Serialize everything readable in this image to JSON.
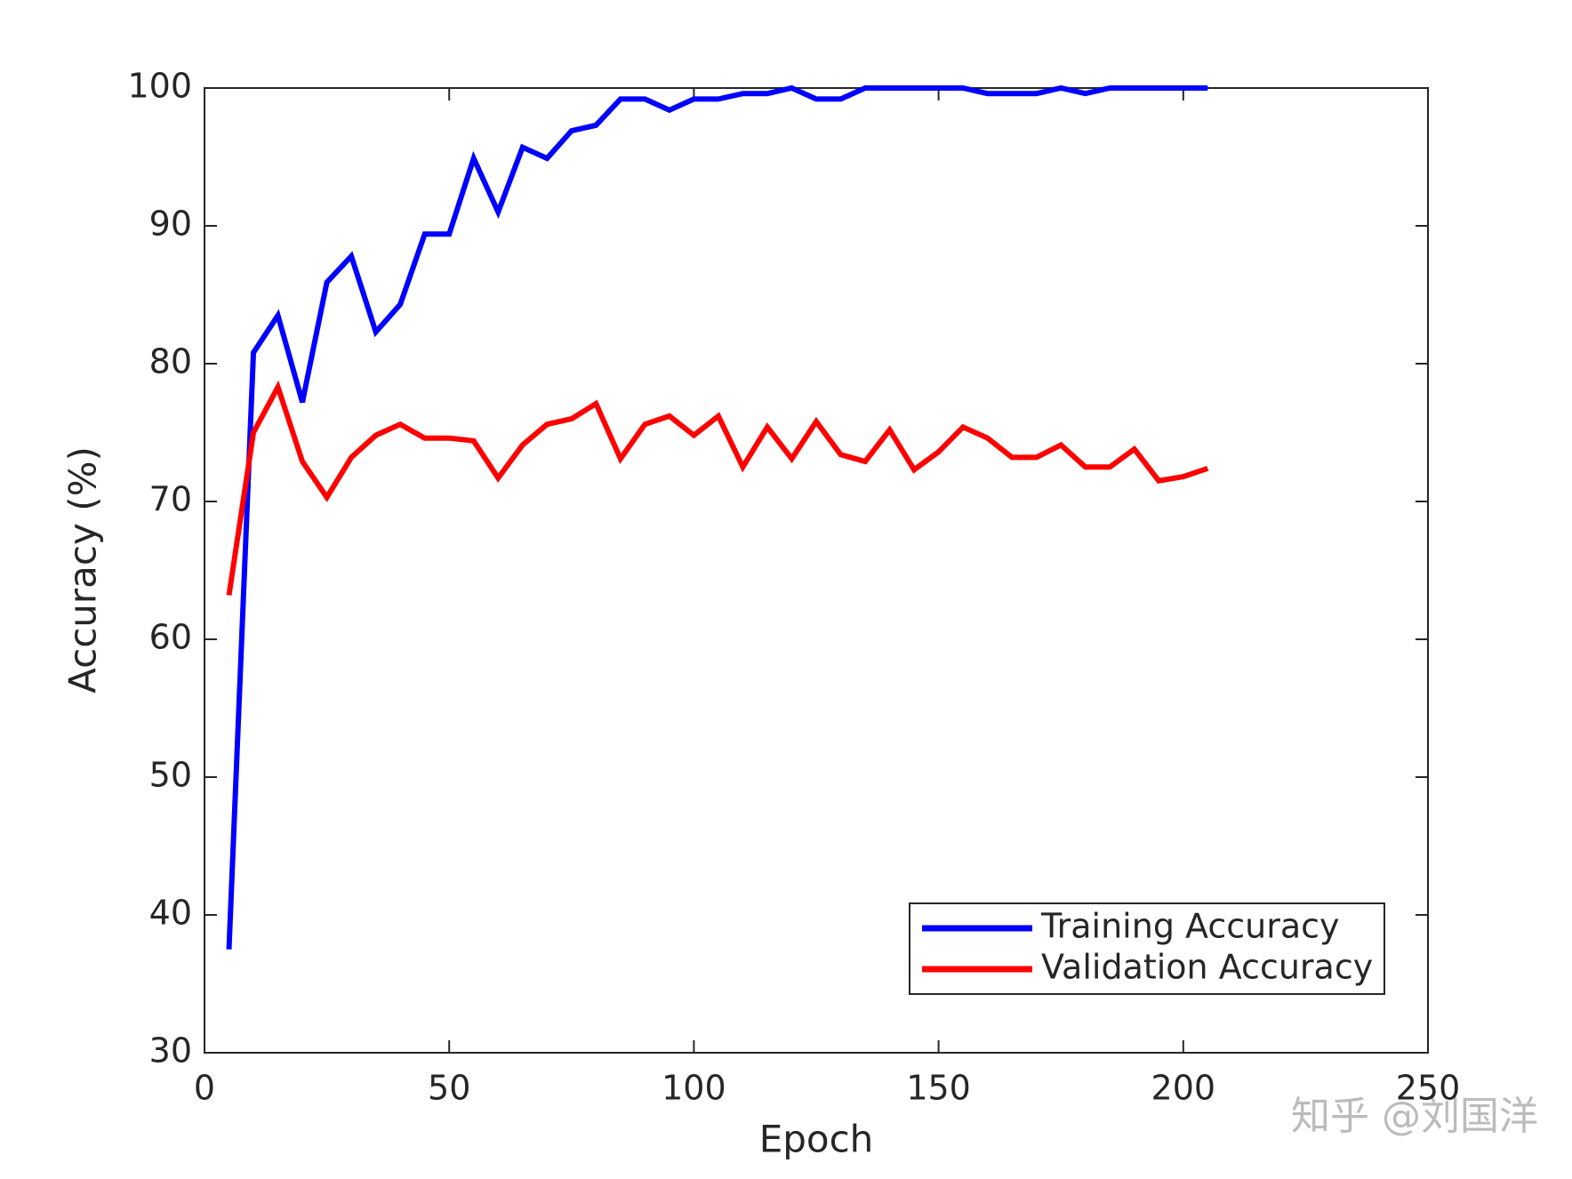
{
  "chart_data": {
    "type": "line",
    "xlabel": "Epoch",
    "ylabel": "Accuracy (%)",
    "x": [
      5,
      10,
      15,
      20,
      25,
      30,
      35,
      40,
      45,
      50,
      55,
      60,
      65,
      70,
      75,
      80,
      85,
      90,
      95,
      100,
      105,
      110,
      115,
      120,
      125,
      130,
      135,
      140,
      145,
      150,
      155,
      160,
      165,
      170,
      175,
      180,
      185,
      190,
      195,
      200,
      205
    ],
    "series": [
      {
        "name": "Training Accuracy",
        "color": "#0000ff",
        "values": [
          37.5,
          80.8,
          83.5,
          77.2,
          85.9,
          87.8,
          82.3,
          84.3,
          89.4,
          89.4,
          94.9,
          91.0,
          95.7,
          94.9,
          96.9,
          97.3,
          99.2,
          99.2,
          98.4,
          99.2,
          99.2,
          99.6,
          99.6,
          100,
          99.2,
          99.2,
          100,
          100,
          100,
          100,
          100,
          99.6,
          99.6,
          99.6,
          100,
          99.6,
          100,
          100,
          100,
          100,
          100
        ]
      },
      {
        "name": "Validation Accuracy",
        "color": "#ff0000",
        "values": [
          63.2,
          75.0,
          78.3,
          72.9,
          70.3,
          73.2,
          74.8,
          75.6,
          74.6,
          74.6,
          74.4,
          71.7,
          74.1,
          75.6,
          76.0,
          77.1,
          73.1,
          75.6,
          76.2,
          74.8,
          76.2,
          72.5,
          75.4,
          73.1,
          75.8,
          73.4,
          72.9,
          75.2,
          72.3,
          73.6,
          75.4,
          74.6,
          73.2,
          73.2,
          74.1,
          72.5,
          72.5,
          73.8,
          71.5,
          71.8,
          72.4
        ]
      }
    ],
    "xlim": [
      0,
      250
    ],
    "xticks": [
      0,
      50,
      100,
      150,
      200,
      250
    ],
    "ylim": [
      30,
      100
    ],
    "yticks": [
      30,
      40,
      50,
      60,
      70,
      80,
      90,
      100
    ],
    "legend": "southeast",
    "grid": false
  },
  "watermark": "知乎 @刘国洋"
}
